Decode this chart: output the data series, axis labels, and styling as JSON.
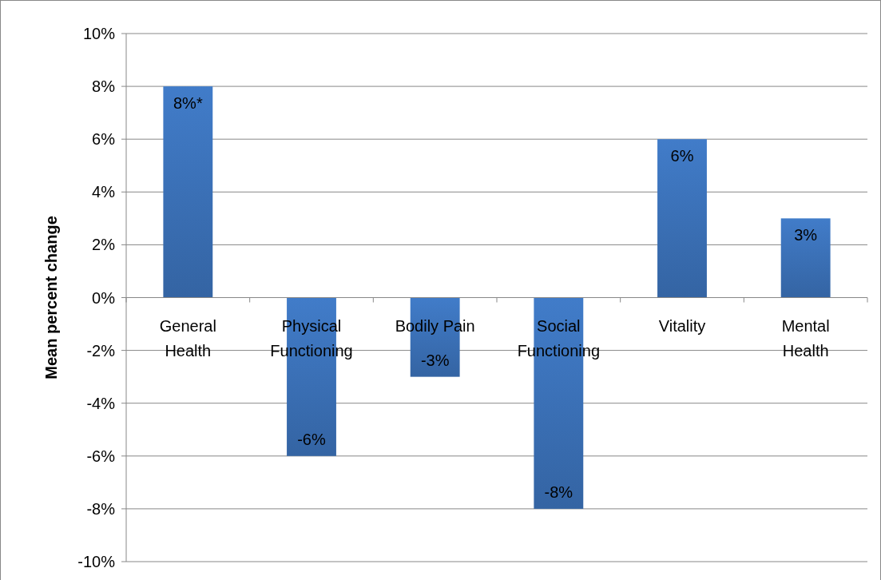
{
  "chart_data": {
    "type": "bar",
    "ylabel": "Mean percent change",
    "categories": [
      "General Health",
      "Physical Functioning",
      "Bodily Pain",
      "Social Functioning",
      "Vitality",
      "Mental Health"
    ],
    "values": [
      8,
      -6,
      -3,
      -8,
      6,
      3
    ],
    "value_labels": [
      "8%*",
      "-6%",
      "-3%",
      "-8%",
      "6%",
      "3%"
    ],
    "color": "#3a6fb5",
    "ylim": [
      -10,
      10
    ],
    "yticks": [
      {
        "value": -10,
        "label": "-10%"
      },
      {
        "value": -8,
        "label": "-8%"
      },
      {
        "value": -6,
        "label": "-6%"
      },
      {
        "value": -4,
        "label": "-4%"
      },
      {
        "value": -2,
        "label": "-2%"
      },
      {
        "value": 0,
        "label": "0%"
      },
      {
        "value": 2,
        "label": "2%"
      },
      {
        "value": 4,
        "label": "4%"
      },
      {
        "value": 6,
        "label": "6%"
      },
      {
        "value": 8,
        "label": "8%"
      },
      {
        "value": 10,
        "label": "10%"
      }
    ],
    "grid": "y"
  }
}
